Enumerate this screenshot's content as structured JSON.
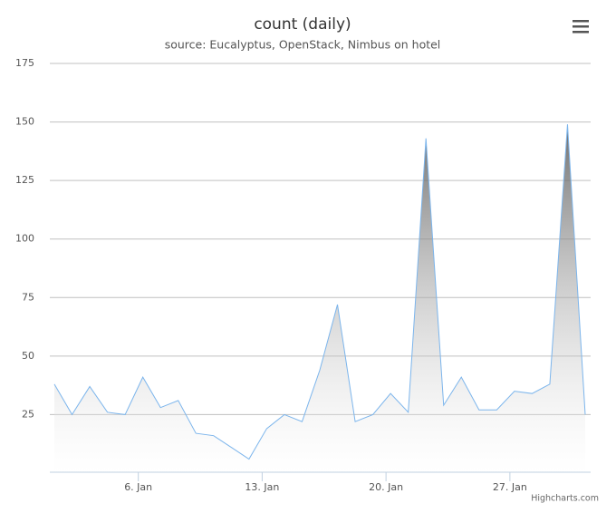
{
  "chart_data": {
    "type": "area",
    "title": "count (daily)",
    "subtitle": "source: Eucalyptus, OpenStack, Nimbus on hotel",
    "credits": "Highcharts.com",
    "x": [
      1,
      2,
      3,
      4,
      5,
      6,
      7,
      8,
      9,
      10,
      11,
      12,
      13,
      14,
      15,
      16,
      17,
      18,
      19,
      20,
      21,
      22,
      23,
      24,
      25,
      26,
      27,
      28,
      29,
      30,
      31
    ],
    "values": [
      38,
      25,
      37,
      26,
      25,
      41,
      28,
      31,
      17,
      16,
      11,
      6,
      19,
      25,
      22,
      44,
      72,
      22,
      25,
      34,
      26,
      143,
      29,
      41,
      27,
      27,
      35,
      34,
      38,
      149,
      25
    ],
    "color": "#7cb5ec",
    "xlim": [
      1,
      31
    ],
    "xticks": [
      {
        "value": 6,
        "label": "6. Jan"
      },
      {
        "value": 13,
        "label": "13. Jan"
      },
      {
        "value": 20,
        "label": "20. Jan"
      },
      {
        "value": 27,
        "label": "27. Jan"
      }
    ],
    "ylim": [
      0,
      175
    ],
    "yticks": [
      25,
      50,
      75,
      100,
      125,
      150,
      175
    ],
    "grid": true
  }
}
